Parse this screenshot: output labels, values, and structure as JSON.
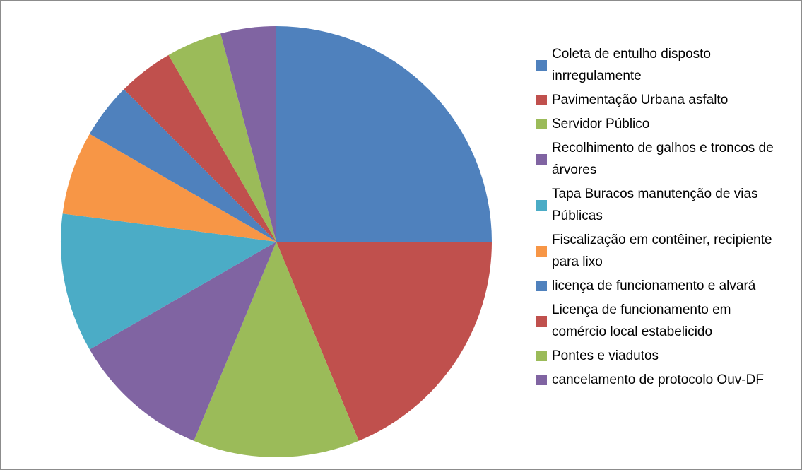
{
  "chart_data": {
    "type": "pie",
    "categories": [
      "Coleta de entulho disposto inrregulamente",
      "Pavimentação Urbana asfalto",
      "Servidor Público",
      "Recolhimento de galhos e troncos de árvores",
      "Tapa Buracos manutenção de vias Públicas",
      "Fiscalização em contêiner, recipiente para lixo",
      "licença de funcionamento e alvará",
      "Licença de funcionamento em comércio local estabelicido",
      "Pontes e viadutos",
      "cancelamento de protocolo Ouv-DF"
    ],
    "values": [
      12,
      9,
      6,
      5,
      5,
      3,
      2,
      2,
      2,
      2
    ],
    "colors": [
      "#4f81bd",
      "#c0504d",
      "#9bbb59",
      "#8064a2",
      "#4bacc6",
      "#f79646",
      "#4f81bd",
      "#c0504d",
      "#9bbb59",
      "#8064a2"
    ],
    "legend": "right"
  }
}
